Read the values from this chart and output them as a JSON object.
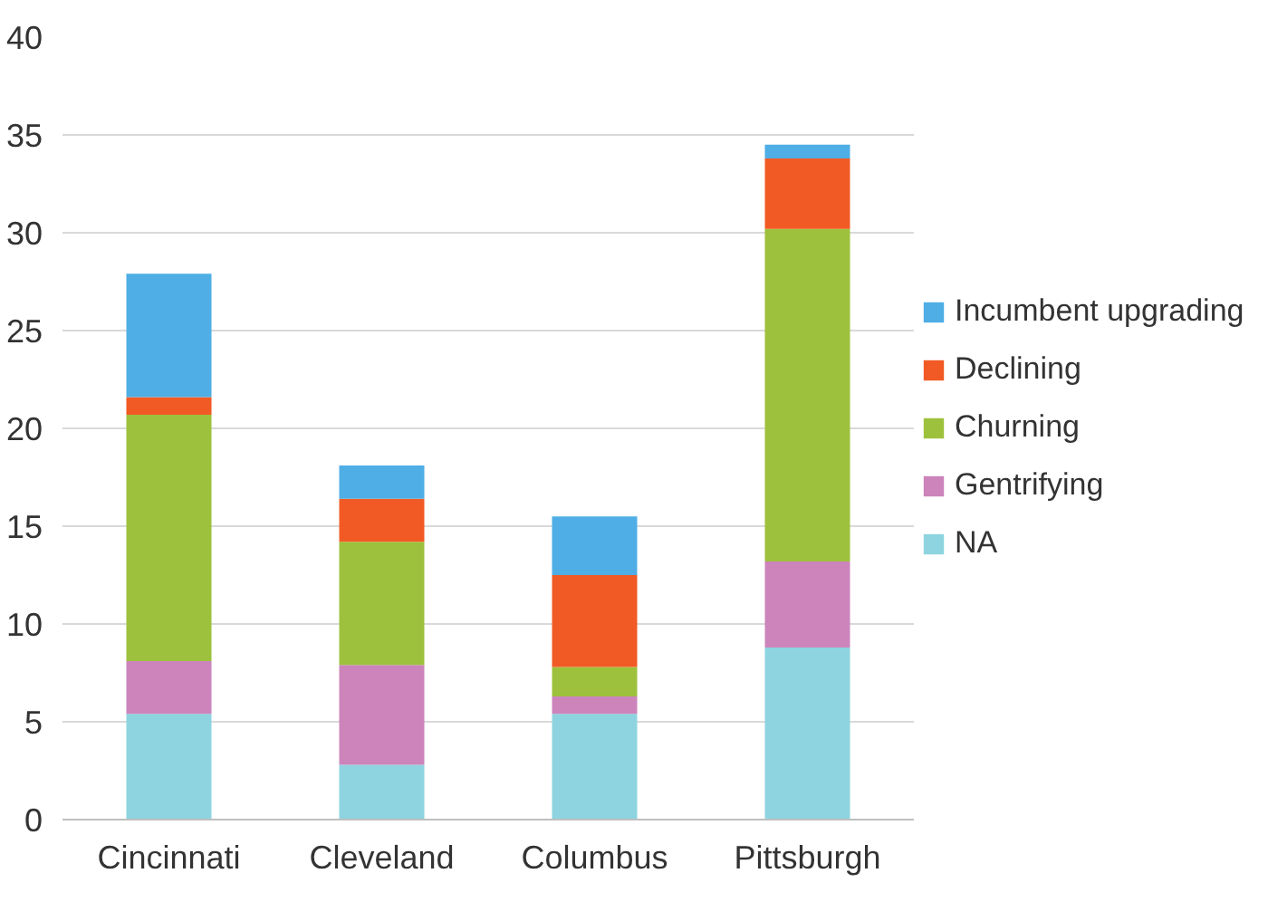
{
  "chart_data": {
    "type": "bar",
    "stacked": true,
    "categories": [
      "Cincinnati",
      "Cleveland",
      "Columbus",
      "Pittsburgh"
    ],
    "series": [
      {
        "name": "NA",
        "color": "#8dd4e0",
        "values": [
          5.4,
          2.8,
          5.4,
          8.8
        ]
      },
      {
        "name": "Gentrifying",
        "color": "#cc84bb",
        "values": [
          2.7,
          5.1,
          0.9,
          4.4
        ]
      },
      {
        "name": "Churning",
        "color": "#9dc13c",
        "values": [
          12.6,
          6.3,
          1.5,
          17.0
        ]
      },
      {
        "name": "Declining",
        "color": "#f15a24",
        "values": [
          0.9,
          2.2,
          4.7,
          3.6
        ]
      },
      {
        "name": "Incumbent upgrading",
        "color": "#4eaee5",
        "values": [
          6.3,
          1.7,
          3.0,
          0.7
        ]
      }
    ],
    "ylim": [
      0,
      40
    ],
    "yticks": [
      0,
      5,
      10,
      15,
      20,
      25,
      30,
      35,
      40
    ],
    "grid": "y",
    "legend": "right"
  }
}
